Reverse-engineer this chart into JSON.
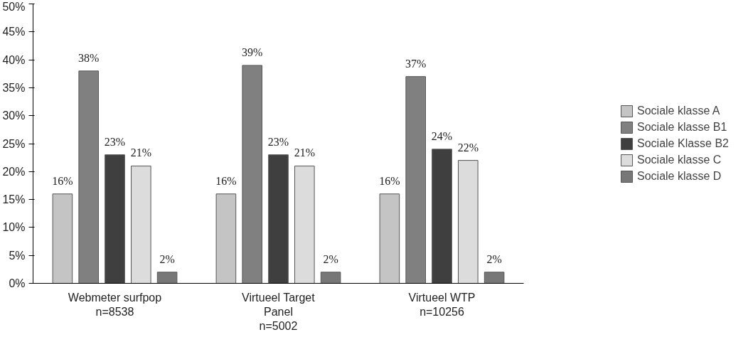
{
  "chart_data": {
    "type": "bar",
    "categories": [
      "Webmeter surfpop\nn=8538",
      "Virtueel Target\nPanel\nn=5002",
      "Virtueel WTP\nn=10256"
    ],
    "series": [
      {
        "name": "Sociale klasse A",
        "color": "#c4c4c4",
        "values": [
          16,
          16,
          16
        ],
        "value_labels": [
          "16%",
          "16%",
          "16%"
        ]
      },
      {
        "name": "Sociale klasse B1",
        "color": "#808080",
        "values": [
          38,
          39,
          37
        ],
        "value_labels": [
          "38%",
          "39%",
          "37%"
        ]
      },
      {
        "name": "Sociale Klasse B2",
        "color": "#3f3f3f",
        "values": [
          23,
          23,
          24
        ],
        "value_labels": [
          "23%",
          "23%",
          "24%"
        ]
      },
      {
        "name": "Sociale klasse C",
        "color": "#dcdcdc",
        "values": [
          21,
          21,
          22
        ],
        "value_labels": [
          "21%",
          "21%",
          "22%"
        ]
      },
      {
        "name": "Sociale klasse D",
        "color": "#777777",
        "values": [
          2,
          2,
          2
        ],
        "value_labels": [
          "2%",
          "2%",
          "2%"
        ]
      }
    ],
    "ylim": [
      0,
      50
    ],
    "yticks": [
      {
        "value": 0,
        "label": "0%"
      },
      {
        "value": 5,
        "label": "5%"
      },
      {
        "value": 10,
        "label": "10%"
      },
      {
        "value": 15,
        "label": "15%"
      },
      {
        "value": 20,
        "label": "20%"
      },
      {
        "value": 25,
        "label": "25%"
      },
      {
        "value": 30,
        "label": "30%"
      },
      {
        "value": 35,
        "label": "35%"
      },
      {
        "value": 40,
        "label": "40%"
      },
      {
        "value": 45,
        "label": "45%"
      },
      {
        "value": 50,
        "label": "50%"
      }
    ],
    "grid": false,
    "legend": "right"
  }
}
